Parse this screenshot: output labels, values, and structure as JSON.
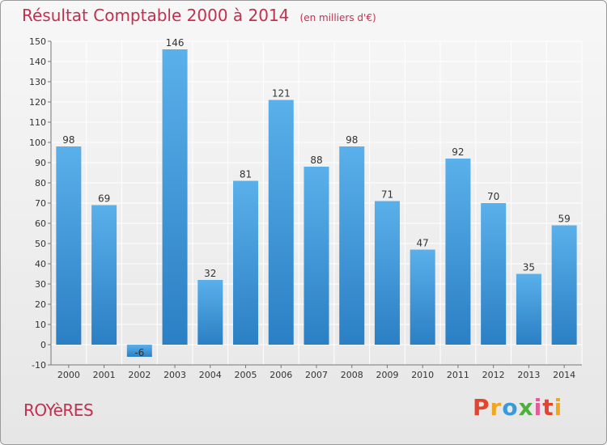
{
  "title": "Résultat Comptable 2000 à 2014",
  "unit_note": "(en milliers d'€)",
  "commune": "ROYèRES",
  "brand": "Proxiti",
  "colors": {
    "title": "#c0304f",
    "bar_top": "#5ab0ea",
    "bar_bottom": "#2b7fc4",
    "grid": "#ffffff",
    "axis": "#777777"
  },
  "chart_data": {
    "type": "bar",
    "title": "Résultat Comptable 2000 à 2014",
    "ylabel": "",
    "xlabel": "",
    "categories": [
      "2000",
      "2001",
      "2002",
      "2003",
      "2004",
      "2005",
      "2006",
      "2007",
      "2008",
      "2009",
      "2010",
      "2011",
      "2012",
      "2013",
      "2014"
    ],
    "values": [
      98,
      69,
      -6,
      146,
      32,
      81,
      121,
      88,
      98,
      71,
      47,
      92,
      70,
      35,
      59
    ],
    "ylim": [
      -10,
      150
    ],
    "yticks": [
      -10,
      0,
      10,
      20,
      30,
      40,
      50,
      60,
      70,
      80,
      90,
      100,
      110,
      120,
      130,
      140,
      150
    ],
    "grid": true,
    "data_labels": true
  }
}
